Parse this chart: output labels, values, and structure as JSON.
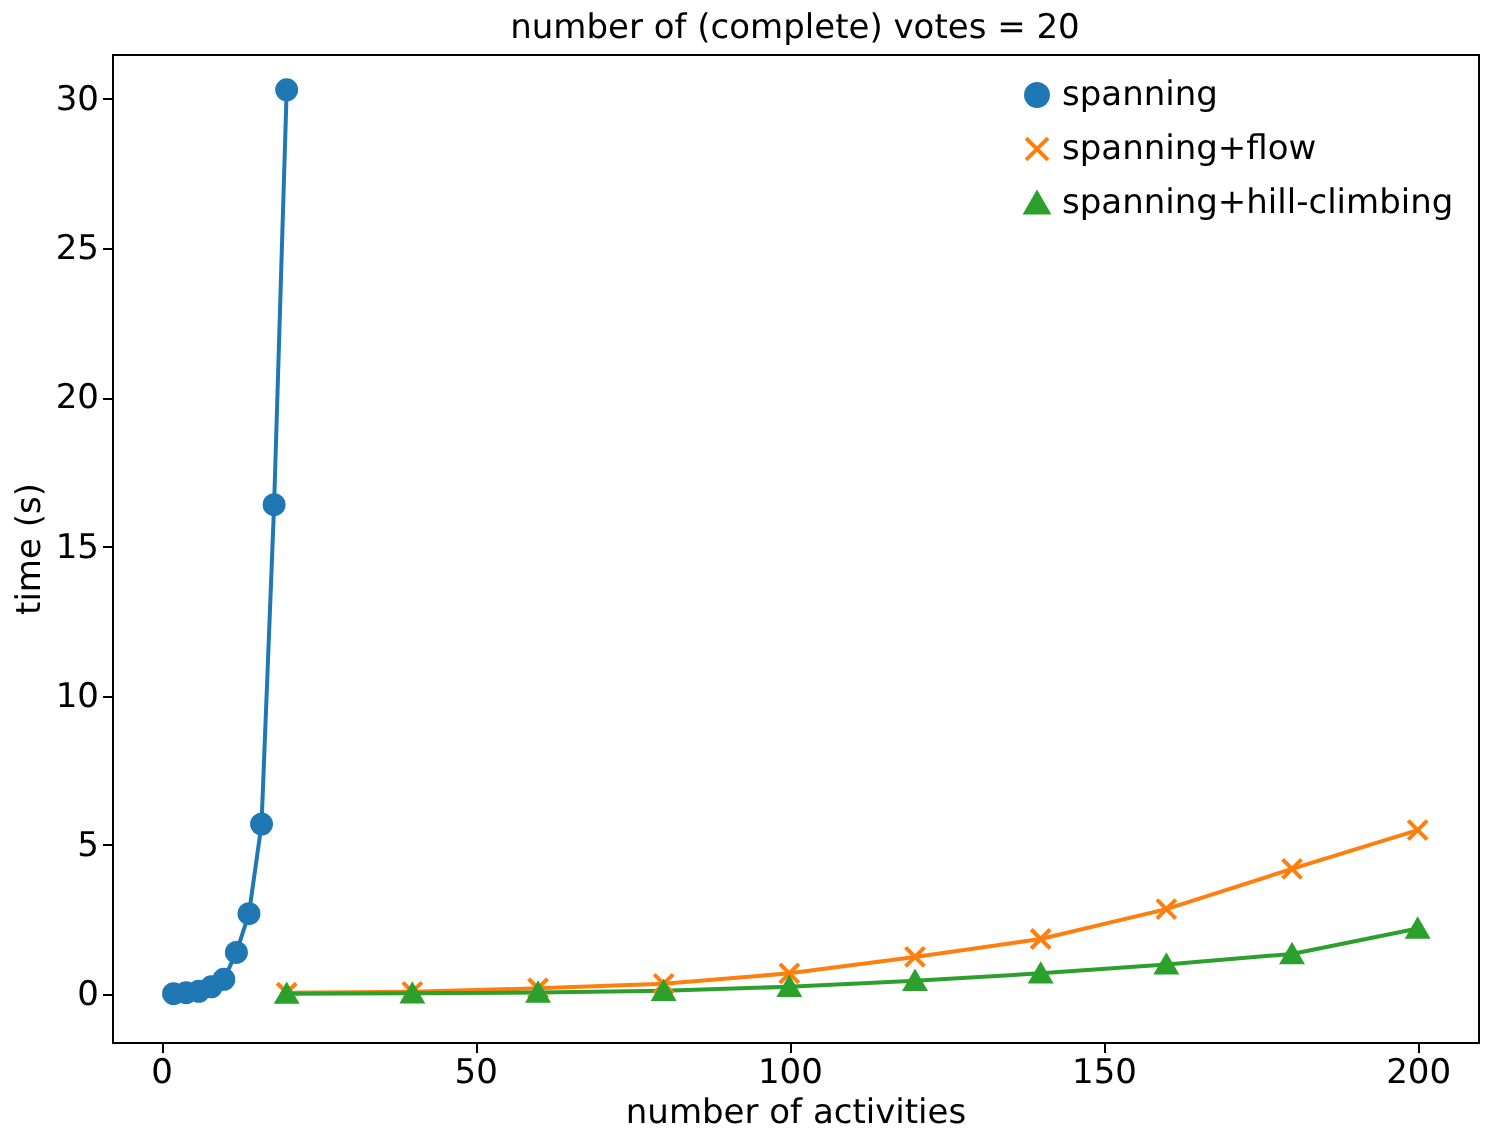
{
  "chart_data": {
    "type": "line",
    "title": "number of (complete) votes = 20",
    "xlabel": "number of activities",
    "ylabel": "time (s)",
    "xlim": [
      -7.8,
      209.6
    ],
    "xticks": [
      0,
      50,
      100,
      150,
      200
    ],
    "ylim": [
      -1.6,
      31.5
    ],
    "yticks": [
      0,
      5,
      10,
      15,
      20,
      25,
      30
    ],
    "grid": false,
    "legend": "top right",
    "line_style": "solid",
    "series": [
      {
        "name": "spanning",
        "color": "#1f77b4",
        "marker": "circle",
        "x": [
          2,
          4,
          6,
          8,
          10,
          12,
          14,
          16,
          18,
          20
        ],
        "values": [
          0.02,
          0.05,
          0.1,
          0.25,
          0.5,
          1.4,
          2.7,
          5.7,
          16.4,
          30.3
        ]
      },
      {
        "name": "spanning+flow",
        "color": "#ff7f0e",
        "marker": "cross",
        "x": [
          20,
          40,
          60,
          80,
          100,
          120,
          140,
          160,
          180,
          200
        ],
        "values": [
          0.05,
          0.08,
          0.2,
          0.35,
          0.7,
          1.25,
          1.85,
          2.85,
          4.2,
          5.5
        ]
      },
      {
        "name": "spanning+hill-climbing",
        "color": "#2ca02c",
        "marker": "triangle",
        "x": [
          20,
          40,
          60,
          80,
          100,
          120,
          140,
          160,
          180,
          200
        ],
        "values": [
          0.02,
          0.03,
          0.06,
          0.12,
          0.25,
          0.45,
          0.7,
          1.0,
          1.35,
          2.2
        ]
      }
    ]
  }
}
